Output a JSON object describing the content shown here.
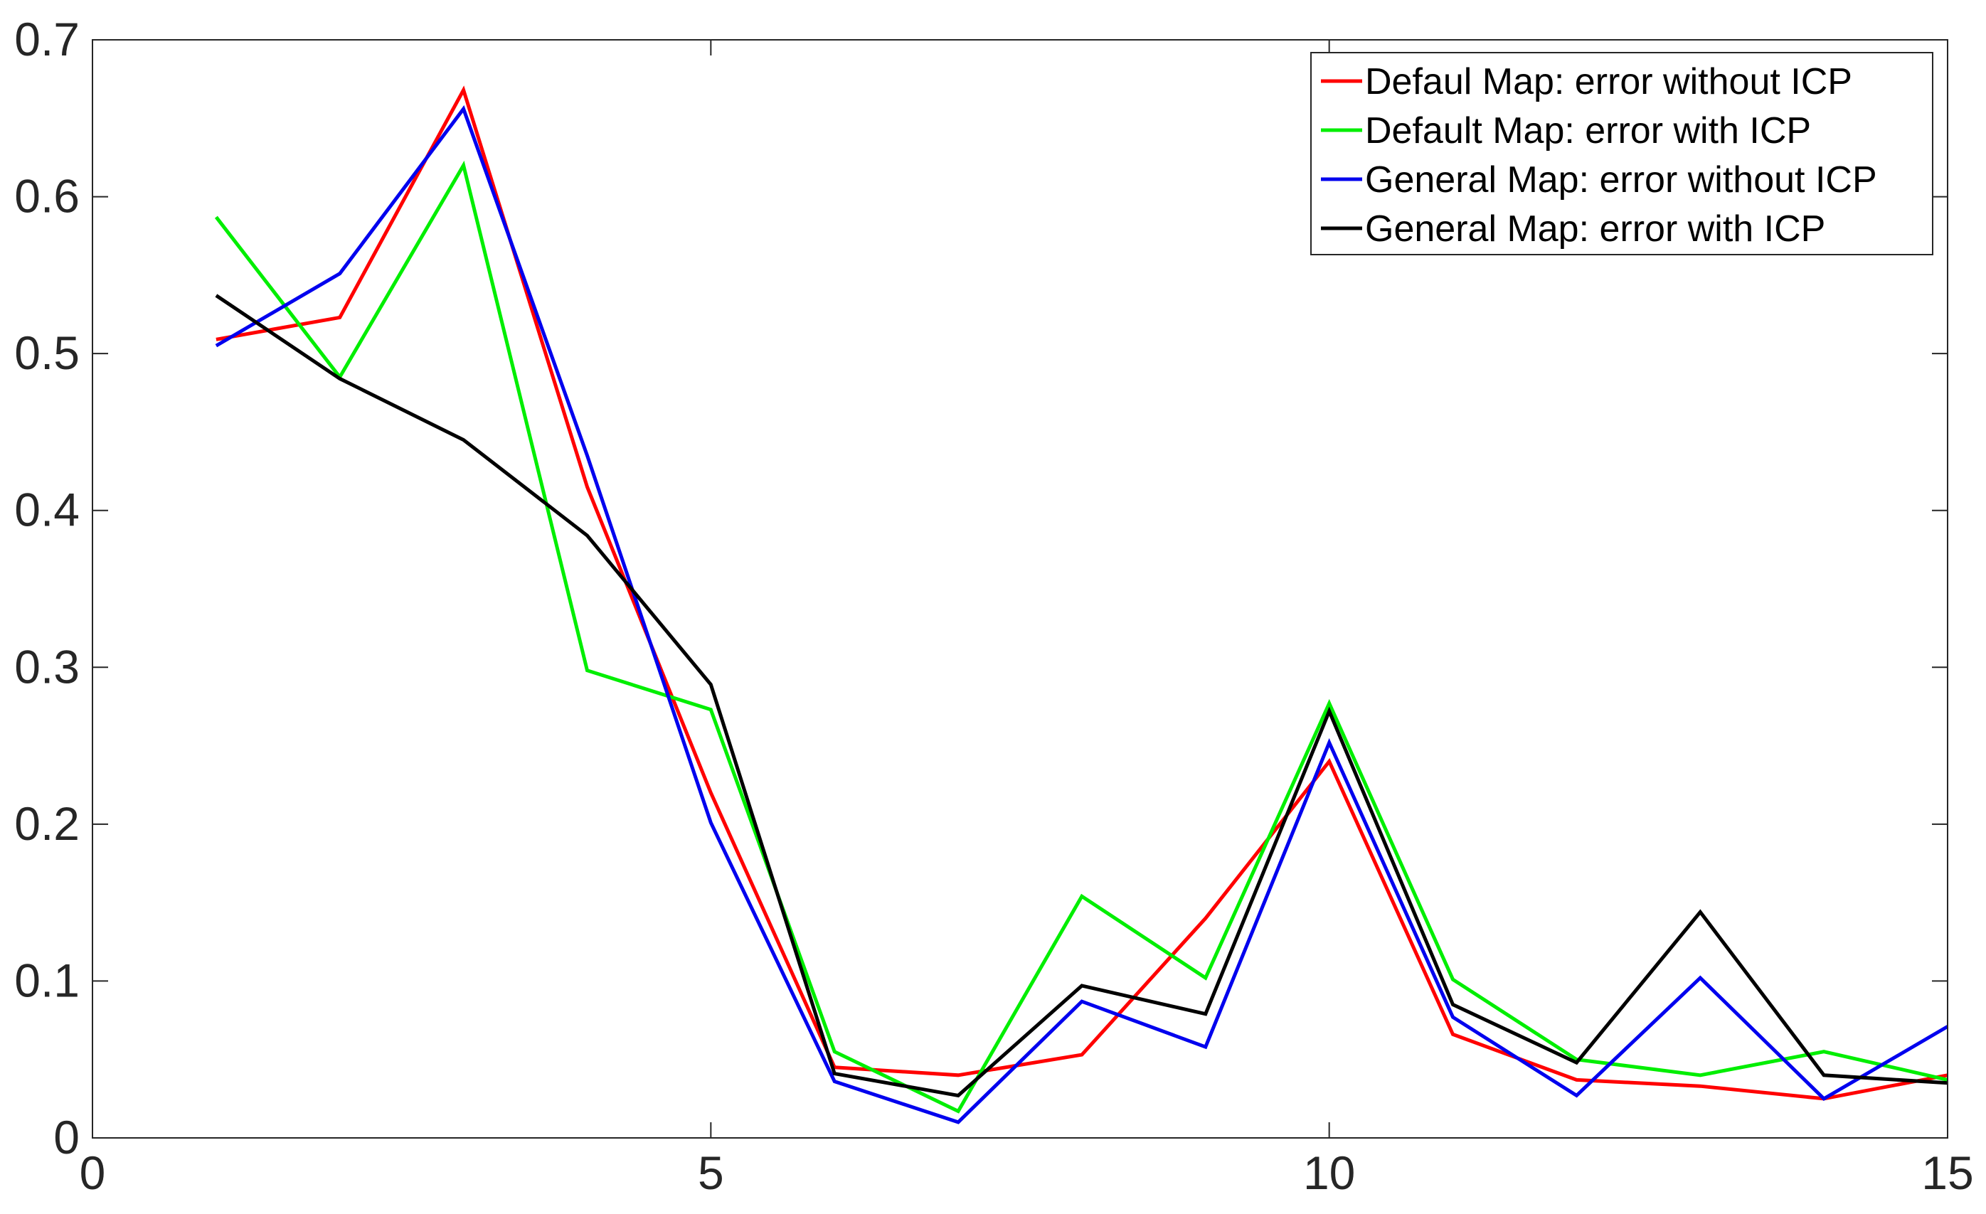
{
  "chart_data": {
    "type": "line",
    "title": "",
    "xlabel": "",
    "ylabel": "",
    "xlim": [
      0,
      15
    ],
    "ylim": [
      0,
      0.7
    ],
    "xticks": [
      0,
      5,
      10,
      15
    ],
    "xtick_labels": [
      "0",
      "5",
      "10",
      "15"
    ],
    "yticks": [
      0,
      0.1,
      0.2,
      0.3,
      0.4,
      0.5,
      0.6,
      0.7
    ],
    "ytick_labels": [
      "0",
      "0.1",
      "0.2",
      "0.3",
      "0.4",
      "0.5",
      "0.6",
      "0.7"
    ],
    "grid": false,
    "legend_position": "top-right",
    "x": [
      1,
      2,
      3,
      4,
      5,
      6,
      7,
      8,
      9,
      10,
      11,
      12,
      13,
      14,
      15
    ],
    "series": [
      {
        "name": "Defaul Map: error without ICP",
        "color": "#ff0000",
        "values": [
          0.509,
          0.523,
          0.668,
          0.415,
          0.22,
          0.045,
          0.04,
          0.053,
          0.14,
          0.24,
          0.066,
          0.037,
          0.033,
          0.025,
          0.04
        ]
      },
      {
        "name": "Default Map: error with ICP",
        "color": "#00ee00",
        "values": [
          0.587,
          0.485,
          0.62,
          0.298,
          0.273,
          0.055,
          0.017,
          0.154,
          0.102,
          0.277,
          0.101,
          0.05,
          0.04,
          0.055,
          0.037
        ]
      },
      {
        "name": "General Map: error without ICP",
        "color": "#0000ee",
        "values": [
          0.505,
          0.551,
          0.656,
          0.435,
          0.201,
          0.036,
          0.01,
          0.087,
          0.058,
          0.252,
          0.077,
          0.027,
          0.102,
          0.025,
          0.071
        ]
      },
      {
        "name": "General Map: error with ICP",
        "color": "#000000",
        "values": [
          0.537,
          0.484,
          0.445,
          0.384,
          0.289,
          0.041,
          0.027,
          0.097,
          0.079,
          0.272,
          0.085,
          0.048,
          0.144,
          0.04,
          0.035
        ]
      }
    ]
  }
}
